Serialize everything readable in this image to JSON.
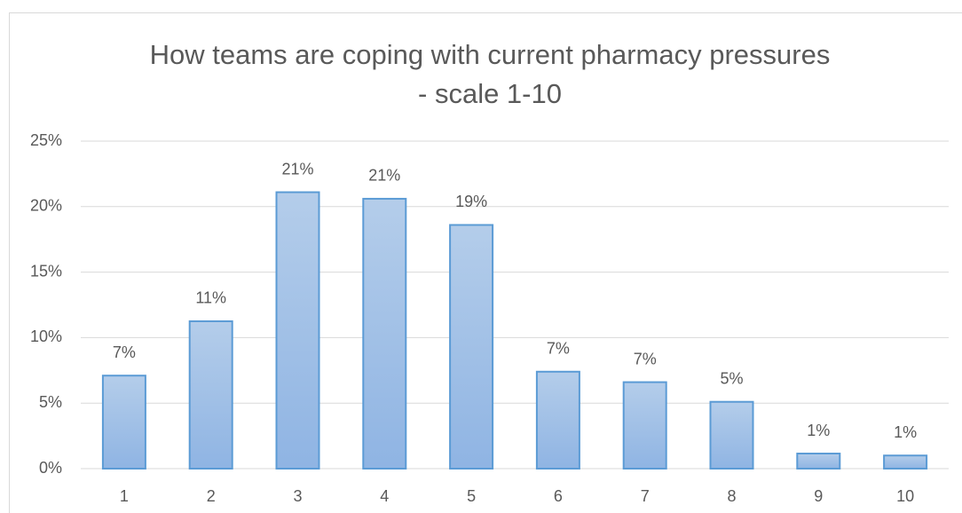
{
  "chart_data": {
    "type": "bar",
    "title": "How teams are coping with current pharmacy pressures - scale 1-10",
    "categories": [
      "1",
      "2",
      "3",
      "4",
      "5",
      "6",
      "7",
      "8",
      "9",
      "10"
    ],
    "values": [
      7.1,
      11.25,
      21.1,
      20.6,
      18.6,
      7.4,
      6.6,
      5.1,
      1.15,
      1.0
    ],
    "value_labels": [
      "7%",
      "11%",
      "21%",
      "21%",
      "19%",
      "7%",
      "7%",
      "5%",
      "1%",
      "1%"
    ],
    "color": "#5b9bd5",
    "ylim": [
      0,
      25
    ],
    "yticks": [
      {
        "value": 0,
        "label": "0%"
      },
      {
        "value": 5,
        "label": "5%"
      },
      {
        "value": 10,
        "label": "10%"
      },
      {
        "value": 15,
        "label": "15%"
      },
      {
        "value": 20,
        "label": "20%"
      },
      {
        "value": 25,
        "label": "25%"
      }
    ],
    "grid": true
  }
}
